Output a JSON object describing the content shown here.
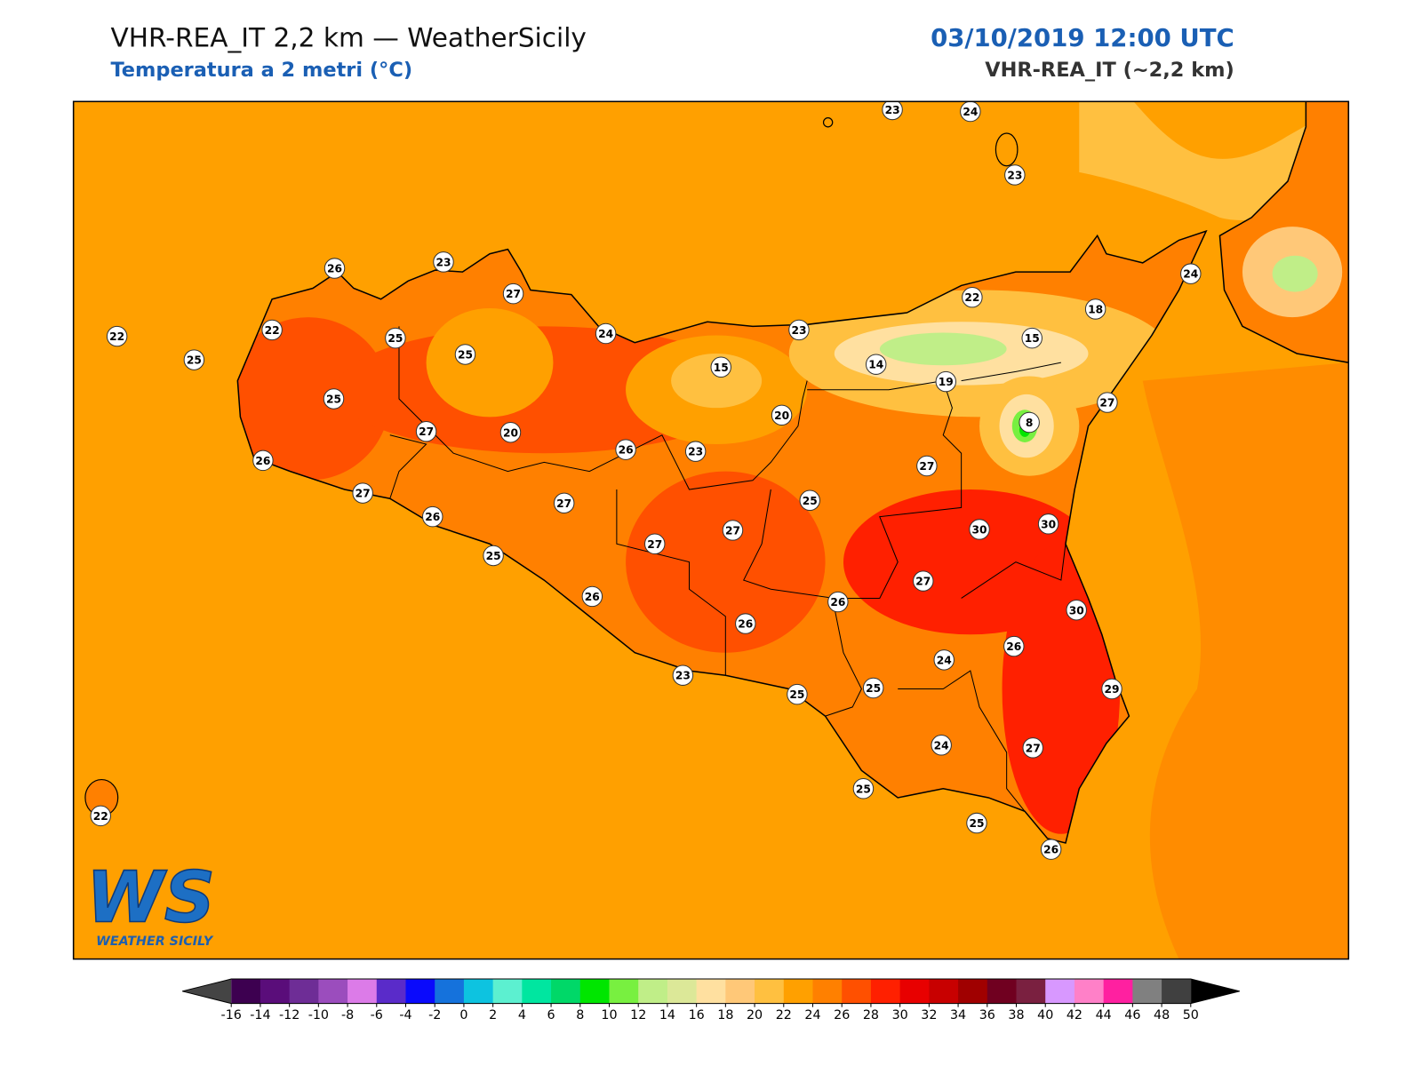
{
  "header": {
    "title": "VHR-REA_IT 2,2 km — WeatherSicily",
    "subtitle": "Temperatura a 2 metri (°C)",
    "datetime": "03/10/2019 12:00 UTC",
    "model": "VHR-REA_IT (~2,2 km)"
  },
  "stations": [
    23,
    24,
    23,
    26,
    23,
    27,
    24,
    22,
    18,
    22,
    22,
    25,
    25,
    25,
    24,
    23,
    15,
    15,
    14,
    19,
    25,
    27,
    20,
    8,
    27,
    20,
    26,
    23,
    26,
    27,
    27,
    25,
    27,
    26,
    30,
    30,
    27,
    27,
    25,
    27,
    26,
    26,
    30,
    26,
    26,
    24,
    23,
    25,
    25,
    29,
    24,
    27,
    25,
    22,
    25,
    26
  ],
  "colorbar": {
    "ticks": [
      -16,
      -14,
      -12,
      -10,
      -8,
      -6,
      -4,
      -2,
      0,
      2,
      4,
      6,
      8,
      10,
      12,
      14,
      16,
      18,
      20,
      22,
      24,
      26,
      28,
      30,
      32,
      34,
      36,
      38,
      40,
      42,
      44,
      46,
      48,
      50
    ],
    "colors": [
      "#3d0050",
      "#5a0d7a",
      "#6e2d96",
      "#9b4dbd",
      "#dc7be8",
      "#5a2bc9",
      "#0a0afc",
      "#1572dc",
      "#0dc3e0",
      "#5cf0d0",
      "#00e6a0",
      "#00d868",
      "#00e600",
      "#78f040",
      "#c0ee88",
      "#dce898",
      "#ffe0a0",
      "#ffc878",
      "#ffc040",
      "#ffa000",
      "#ff8000",
      "#ff5000",
      "#ff2000",
      "#e80000",
      "#c80000",
      "#a00000",
      "#700020",
      "#7a2040",
      "#d898ff",
      "#ff80c8",
      "#ff20a0",
      "#808080",
      "#404040"
    ],
    "under_color": "#444444",
    "over_color": "#000000"
  },
  "logo": {
    "mark": "WS",
    "name": "WEATHER SICILY"
  }
}
